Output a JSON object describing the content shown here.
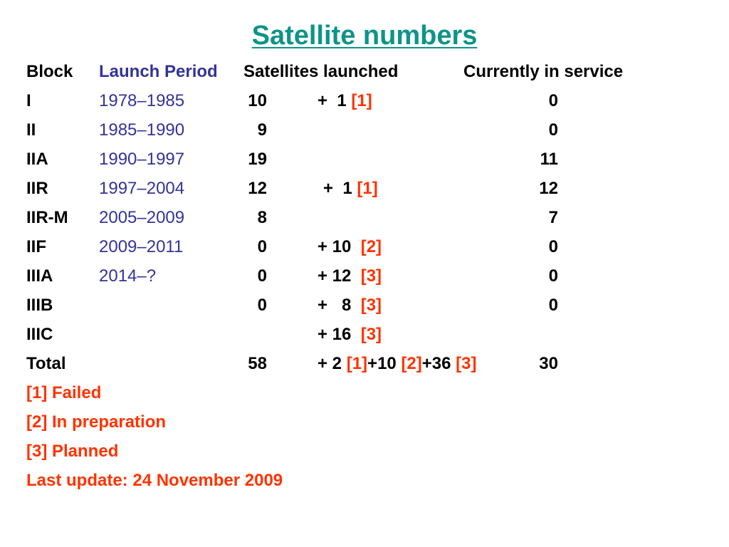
{
  "title": "Satellite numbers",
  "header": {
    "block": "Block",
    "period": "Launch Period",
    "launched": "Satellites launched",
    "service": "Currently in service"
  },
  "rows": [
    {
      "block": "I",
      "period": "1978–1985",
      "launched": "10",
      "extra": "+  1 ",
      "ref": "[1]",
      "service": "0"
    },
    {
      "block": "II",
      "period": "1985–1990",
      "launched": "9",
      "extra": "",
      "ref": "",
      "service": "0"
    },
    {
      "block": "IIA",
      "period": "1990–1997",
      "launched": "19",
      "extra": "",
      "ref": "",
      "service": "11"
    },
    {
      "block": "IIR",
      "period": "1997–2004",
      "launched": "12",
      "extra": "+  1 ",
      "ref": "[1]",
      "service": "12"
    },
    {
      "block": "IIR-M",
      "period": "2005–2009",
      "launched": "8",
      "extra": "",
      "ref": "",
      "service": "7"
    },
    {
      "block": "IIF",
      "period": "2009–2011",
      "launched": "0",
      "extra": "+ 10  ",
      "ref": "[2]",
      "service": "0"
    },
    {
      "block": "IIIA",
      "period": "2014–?",
      "launched": "0",
      "extra": "+ 12  ",
      "ref": "[3]",
      "service": "0"
    },
    {
      "block": "IIIB",
      "period": "",
      "launched": "0",
      "extra": "+   8  ",
      "ref": "[3]",
      "service": "0"
    },
    {
      "block": "IIIC",
      "period": "",
      "launched": "",
      "extra": "+ 16  ",
      "ref": "[3]",
      "service": ""
    }
  ],
  "total": {
    "block": "Total",
    "launched": "58",
    "extra_1": "+ 2 ",
    "ref_1": "[1]",
    "extra_2": "+10 ",
    "ref_2": "[2]",
    "extra_3": "+36 ",
    "ref_3": "[3]",
    "service": "30"
  },
  "notes": {
    "failed": "[1] Failed",
    "preparation": "[2] In preparation",
    "planned": "[3] Planned",
    "last_update": "Last update: 24 November 2009"
  },
  "colors": {
    "title": "#0d9488",
    "period": "#333399",
    "reference": "#ff3300"
  }
}
